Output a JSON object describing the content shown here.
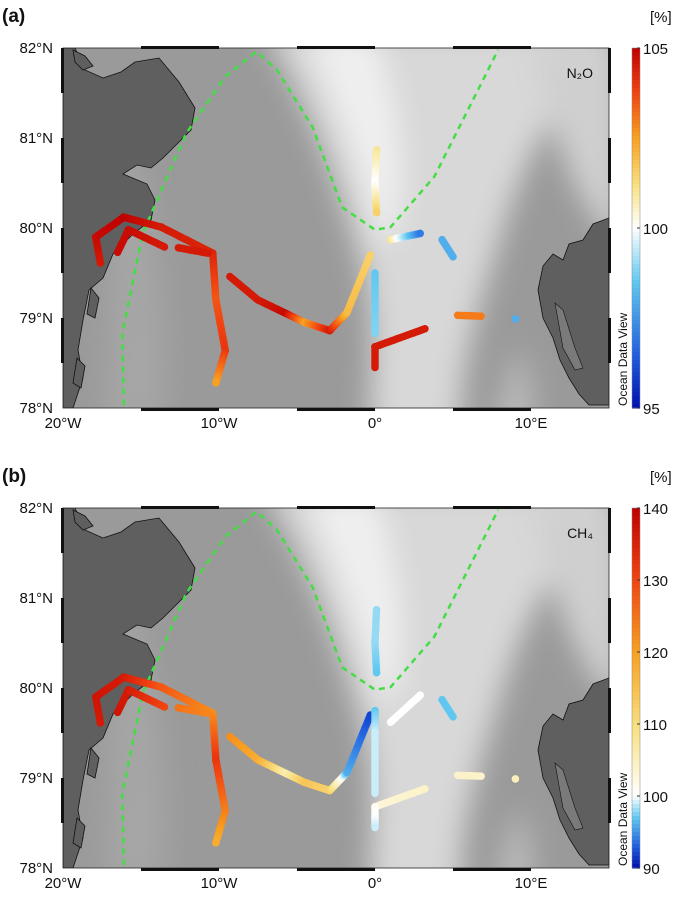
{
  "chart_data": [
    {
      "type": "map",
      "panel_label": "(a)",
      "species_label": "N₂O",
      "colorbar": {
        "unit_label": "[%]",
        "min": 95,
        "max": 105,
        "center": 100,
        "ticks": [
          "105",
          "100",
          "95"
        ],
        "tick_values": [
          105,
          100,
          95
        ],
        "watermark": "Ocean Data View"
      },
      "lon_range": [
        -20,
        15
      ],
      "lat_range": [
        78,
        82
      ],
      "x_ticks": [
        {
          "value": -20,
          "label": "20°W"
        },
        {
          "value": -10,
          "label": "10°W"
        },
        {
          "value": 0,
          "label": "0°"
        },
        {
          "value": 10,
          "label": "10°E"
        }
      ],
      "y_ticks": [
        {
          "value": 82,
          "label": "82°N"
        },
        {
          "value": 81,
          "label": "81°N"
        },
        {
          "value": 80,
          "label": "80°N"
        },
        {
          "value": 79,
          "label": "79°N"
        },
        {
          "value": 78,
          "label": "78°N"
        }
      ],
      "tracks": [
        [
          [
            -17.6,
            79.61,
            104.5
          ],
          [
            -17.9,
            79.9,
            104.8
          ],
          [
            -16.1,
            80.12,
            105
          ],
          [
            -13.7,
            80.01,
            104.5
          ],
          [
            -10.4,
            79.72,
            104.3
          ],
          [
            -10.2,
            79.2,
            103.5
          ],
          [
            -9.6,
            78.64,
            104
          ],
          [
            -10.2,
            78.28,
            102.5
          ]
        ],
        [
          [
            -16.5,
            79.73,
            104.8
          ],
          [
            -15.8,
            79.98,
            104.8
          ],
          [
            -13.5,
            79.79,
            104.5
          ]
        ],
        [
          [
            -12.6,
            79.78,
            104.5
          ],
          [
            -10.7,
            79.72,
            104.5
          ]
        ],
        [
          [
            -9.3,
            79.46,
            104.5
          ],
          [
            -7.5,
            79.2,
            104.5
          ],
          [
            -5.7,
            79.05,
            104.8
          ],
          [
            -4.5,
            78.95,
            102.5
          ],
          [
            -2.9,
            78.86,
            104.5
          ],
          [
            -1.8,
            79.06,
            102
          ],
          [
            -0.3,
            79.7,
            101.5
          ]
        ],
        [
          [
            0.1,
            80.87,
            101
          ],
          [
            0.0,
            80.5,
            100
          ],
          [
            0.1,
            80.17,
            101.5
          ]
        ],
        [
          [
            0.0,
            79.5,
            98.5
          ],
          [
            0.0,
            78.83,
            98.8
          ]
        ],
        [
          [
            0.0,
            78.68,
            104.5
          ],
          [
            3.2,
            78.88,
            104.5
          ]
        ],
        [
          [
            0.0,
            78.68,
            104.5
          ],
          [
            0.0,
            78.45,
            104.5
          ]
        ],
        [
          [
            1.0,
            79.87,
            101
          ],
          [
            2.9,
            79.94,
            97
          ]
        ],
        [
          [
            4.3,
            79.87,
            98
          ],
          [
            5.0,
            79.68,
            98
          ]
        ],
        [
          [
            5.3,
            79.03,
            103
          ],
          [
            6.8,
            79.02,
            103
          ]
        ],
        [
          [
            9.0,
            78.99,
            98
          ]
        ]
      ]
    },
    {
      "type": "map",
      "panel_label": "(b)",
      "species_label": "CH₄",
      "colorbar": {
        "unit_label": "[%]",
        "min": 90,
        "max": 140,
        "center": 100,
        "ticks": [
          "140",
          "130",
          "120",
          "110",
          "100",
          "90"
        ],
        "tick_values": [
          140,
          130,
          120,
          110,
          100,
          90
        ],
        "watermark": "Ocean Data View"
      },
      "lon_range": [
        -20,
        15
      ],
      "lat_range": [
        78,
        82
      ],
      "x_ticks": [
        {
          "value": -20,
          "label": "20°W"
        },
        {
          "value": -10,
          "label": "10°W"
        },
        {
          "value": 0,
          "label": "0°"
        },
        {
          "value": 10,
          "label": "10°E"
        }
      ],
      "y_ticks": [
        {
          "value": 82,
          "label": "82°N"
        },
        {
          "value": 81,
          "label": "81°N"
        },
        {
          "value": 80,
          "label": "80°N"
        },
        {
          "value": 79,
          "label": "79°N"
        },
        {
          "value": 78,
          "label": "78°N"
        }
      ],
      "tracks": [
        [
          [
            -17.6,
            79.61,
            136
          ],
          [
            -17.9,
            79.9,
            137
          ],
          [
            -16.1,
            80.12,
            136
          ],
          [
            -13.7,
            80.01,
            128
          ],
          [
            -10.4,
            79.72,
            122
          ],
          [
            -10.2,
            79.2,
            132
          ],
          [
            -9.6,
            78.64,
            124
          ],
          [
            -10.2,
            78.28,
            118
          ]
        ],
        [
          [
            -16.5,
            79.73,
            137
          ],
          [
            -15.8,
            79.98,
            136
          ],
          [
            -13.5,
            79.79,
            130
          ]
        ],
        [
          [
            -12.6,
            79.78,
            125
          ],
          [
            -10.7,
            79.72,
            123
          ]
        ],
        [
          [
            -9.3,
            79.46,
            122
          ],
          [
            -7.5,
            79.2,
            118
          ],
          [
            -5.7,
            79.05,
            106
          ],
          [
            -4.5,
            78.95,
            114
          ],
          [
            -2.9,
            78.86,
            112
          ],
          [
            -1.8,
            79.06,
            96
          ],
          [
            -0.3,
            79.7,
            92
          ]
        ],
        [
          [
            0.1,
            80.87,
            98
          ],
          [
            0.0,
            80.5,
            98
          ],
          [
            0.1,
            80.17,
            97
          ]
        ],
        [
          [
            0.0,
            79.75,
            97
          ],
          [
            0.0,
            79.5,
            99
          ],
          [
            0.0,
            78.83,
            99
          ]
        ],
        [
          [
            0.0,
            78.68,
            103
          ],
          [
            3.2,
            78.88,
            104
          ]
        ],
        [
          [
            0.0,
            78.68,
            101
          ],
          [
            0.0,
            78.45,
            99
          ]
        ],
        [
          [
            1.0,
            79.62,
            100
          ],
          [
            2.9,
            79.92,
            100
          ]
        ],
        [
          [
            4.3,
            79.87,
            97
          ],
          [
            5.0,
            79.68,
            97
          ]
        ],
        [
          [
            5.3,
            79.03,
            104
          ],
          [
            6.8,
            79.02,
            104
          ]
        ],
        [
          [
            9.0,
            78.99,
            105
          ]
        ]
      ]
    }
  ],
  "front_line": [
    [
      -16.1,
      78.03
    ],
    [
      -16.2,
      78.83
    ],
    [
      -14.9,
      79.94
    ],
    [
      -12.1,
      81.05
    ],
    [
      -9.6,
      81.68
    ],
    [
      -7.6,
      81.96
    ],
    [
      -6.3,
      81.76
    ],
    [
      -4.0,
      81.12
    ],
    [
      -2.1,
      80.23
    ],
    [
      0.0,
      79.98
    ],
    [
      1.0,
      80.01
    ],
    [
      3.8,
      80.57
    ],
    [
      7.9,
      81.98
    ]
  ],
  "colors": {
    "land": "#5f5f5f",
    "front": "#44dd44",
    "ocean_dark": "#8e8e8e",
    "ocean_light": "#dcdcdc"
  }
}
